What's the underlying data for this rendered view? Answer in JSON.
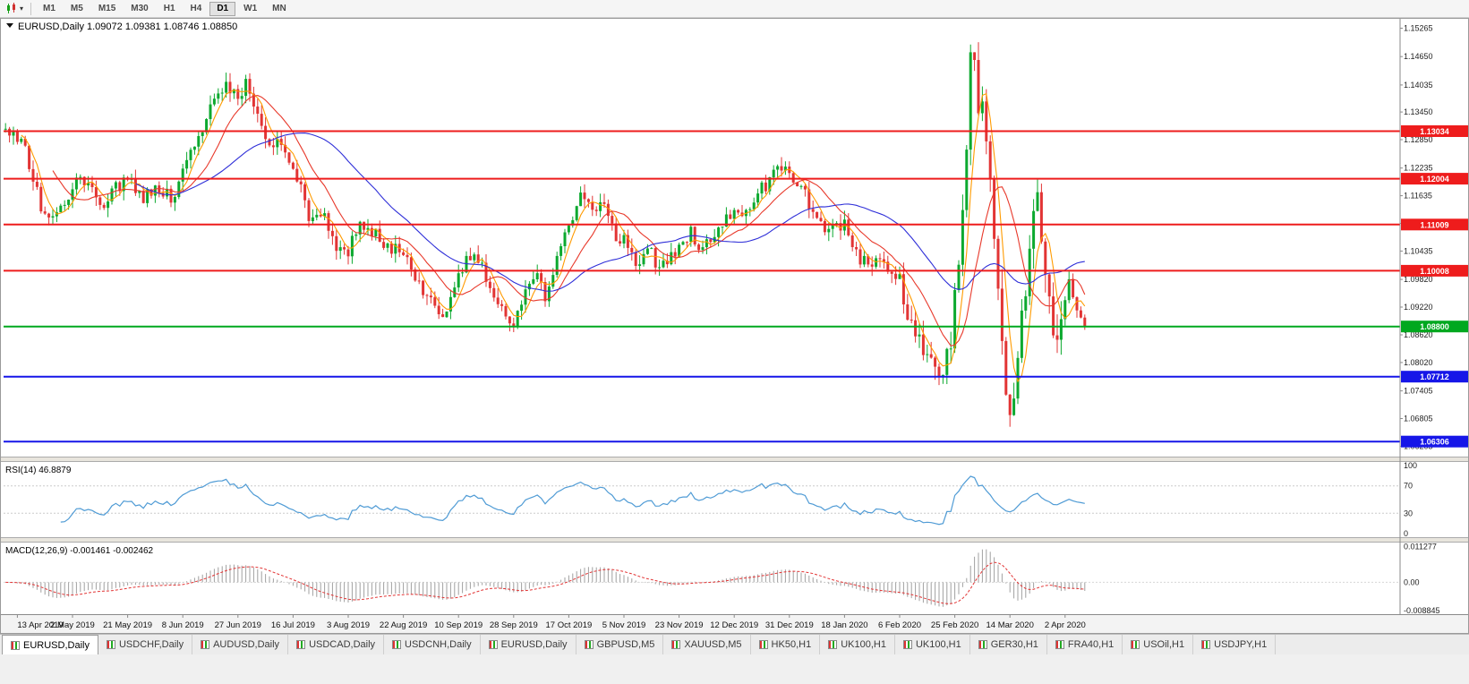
{
  "app": {
    "name": "MetaTrader chart window"
  },
  "toolbar": {
    "timeframes": [
      "M1",
      "M5",
      "M15",
      "M30",
      "H1",
      "H4",
      "D1",
      "W1",
      "MN"
    ],
    "active_timeframe": "D1"
  },
  "chart_header": {
    "symbol": "EURUSD,Daily",
    "open": "1.09072",
    "high": "1.09381",
    "low": "1.08746",
    "close": "1.08850"
  },
  "chart_data": {
    "type": "candlestick",
    "symbol": "EURUSD",
    "timeframe": "Daily",
    "num_candles": 275,
    "price_scale": {
      "min": 1.0598,
      "max": 1.1545,
      "ticks": [
        "1.15265",
        "1.14650",
        "1.14035",
        "1.13450",
        "1.12850",
        "1.12235",
        "1.11635",
        "1.11035",
        "1.10435",
        "1.09820",
        "1.09220",
        "1.08620",
        "1.08020",
        "1.07405",
        "1.06805",
        "1.06205"
      ]
    },
    "price_keypoints": [
      [
        0,
        1.13
      ],
      [
        4,
        1.1285
      ],
      [
        9,
        1.114
      ],
      [
        13,
        1.1115
      ],
      [
        17,
        1.118
      ],
      [
        20,
        1.12
      ],
      [
        24,
        1.1135
      ],
      [
        28,
        1.118
      ],
      [
        31,
        1.12
      ],
      [
        35,
        1.1155
      ],
      [
        39,
        1.1185
      ],
      [
        42,
        1.1155
      ],
      [
        45,
        1.122
      ],
      [
        48,
        1.128
      ],
      [
        52,
        1.135
      ],
      [
        56,
        1.14
      ],
      [
        59,
        1.1385
      ],
      [
        61,
        1.1405
      ],
      [
        64,
        1.134
      ],
      [
        67,
        1.128
      ],
      [
        70,
        1.127
      ],
      [
        73,
        1.1225
      ],
      [
        77,
        1.112
      ],
      [
        80,
        1.1135
      ],
      [
        84,
        1.106
      ],
      [
        87,
        1.104
      ],
      [
        90,
        1.111
      ],
      [
        94,
        1.108
      ],
      [
        97,
        1.106
      ],
      [
        101,
        1.1035
      ],
      [
        104,
        1.098
      ],
      [
        108,
        1.0935
      ],
      [
        112,
        1.0905
      ],
      [
        115,
        1.099
      ],
      [
        118,
        1.104
      ],
      [
        122,
        1.099
      ],
      [
        126,
        1.092
      ],
      [
        129,
        1.0885
      ],
      [
        132,
        1.096
      ],
      [
        135,
        1.0995
      ],
      [
        137,
        1.0945
      ],
      [
        140,
        1.103
      ],
      [
        143,
        1.111
      ],
      [
        146,
        1.116
      ],
      [
        149,
        1.112
      ],
      [
        152,
        1.114
      ],
      [
        155,
        1.108
      ],
      [
        157,
        1.107
      ],
      [
        160,
        1.101
      ],
      [
        163,
        1.105
      ],
      [
        166,
        1.1
      ],
      [
        169,
        1.1025
      ],
      [
        171,
        1.106
      ],
      [
        174,
        1.108
      ],
      [
        177,
        1.104
      ],
      [
        180,
        1.1085
      ],
      [
        183,
        1.111
      ],
      [
        185,
        1.113
      ],
      [
        188,
        1.112
      ],
      [
        191,
        1.117
      ],
      [
        194,
        1.12
      ],
      [
        197,
        1.123
      ],
      [
        199,
        1.1215
      ],
      [
        202,
        1.119
      ],
      [
        205,
        1.113
      ],
      [
        208,
        1.109
      ],
      [
        211,
        1.111
      ],
      [
        213,
        1.1095
      ],
      [
        216,
        1.1035
      ],
      [
        219,
        1.101
      ],
      [
        222,
        1.104
      ],
      [
        225,
        1.0995
      ],
      [
        227,
        1.0975
      ],
      [
        230,
        1.089
      ],
      [
        233,
        1.083
      ],
      [
        236,
        1.079
      ],
      [
        238,
        1.08
      ],
      [
        240,
        1.0855
      ],
      [
        242,
        1.099
      ],
      [
        244,
        1.125
      ],
      [
        245,
        1.146
      ],
      [
        246,
        1.143
      ],
      [
        248,
        1.133
      ],
      [
        250,
        1.118
      ],
      [
        252,
        1.098
      ],
      [
        254,
        1.073
      ],
      [
        255,
        1.066
      ],
      [
        257,
        1.078
      ],
      [
        259,
        1.098
      ],
      [
        261,
        1.113
      ],
      [
        262,
        1.115
      ],
      [
        264,
        1.099
      ],
      [
        266,
        1.084
      ],
      [
        268,
        1.09
      ],
      [
        270,
        1.099
      ],
      [
        272,
        1.093
      ],
      [
        274,
        1.0885
      ]
    ],
    "up_color": "#0ca92f",
    "down_color": "#e23434",
    "moving_averages": [
      {
        "period": 5,
        "color": "#ff9b00"
      },
      {
        "period": 13,
        "color": "#e8392b"
      },
      {
        "period": 34,
        "color": "#2f2fd8"
      }
    ],
    "hlines": [
      {
        "value": 1.13034,
        "label": "1.13034",
        "color": "#ee1c1c",
        "width": 2
      },
      {
        "value": 1.12004,
        "label": "1.12004",
        "color": "#ee1c1c",
        "width": 2
      },
      {
        "value": 1.11009,
        "label": "1.11009",
        "color": "#ee1c1c",
        "width": 2
      },
      {
        "value": 1.10008,
        "label": "1.10008",
        "color": "#ee1c1c",
        "width": 2
      },
      {
        "value": 1.088,
        "label": "1.08800",
        "color": "#00a81f",
        "width": 2
      },
      {
        "value": 1.07712,
        "label": "1.07712",
        "color": "#1616e8",
        "width": 2
      },
      {
        "value": 1.06306,
        "label": "1.06306",
        "color": "#1616e8",
        "width": 2
      }
    ],
    "x_labels": [
      "13 Apr 2019",
      "2 May 2019",
      "21 May 2019",
      "8 Jun 2019",
      "27 Jun 2019",
      "16 Jul 2019",
      "3 Aug 2019",
      "22 Aug 2019",
      "10 Sep 2019",
      "28 Sep 2019",
      "17 Oct 2019",
      "5 Nov 2019",
      "23 Nov 2019",
      "12 Dec 2019",
      "31 Dec 2019",
      "18 Jan 2020",
      "6 Feb 2020",
      "25 Feb 2020",
      "14 Mar 2020",
      "2 Apr 2020"
    ],
    "indicators": {
      "rsi": {
        "name": "RSI(14)",
        "value": "46.8879",
        "period": 14,
        "levels": [
          "100",
          "70",
          "30",
          "0"
        ],
        "line_color": "#4f9bd5"
      },
      "macd": {
        "name": "MACD(12,26,9)",
        "values": "-0.001461 -0.002462",
        "fast": 12,
        "slow": 26,
        "signal": 9,
        "axis_labels": [
          "0.011277",
          "0.00",
          "-0.008845"
        ],
        "bar_color": "#a0a0a0",
        "signal_color": "#e23434"
      }
    }
  },
  "tabs": [
    {
      "label": "EURUSD,Daily",
      "active": true
    },
    {
      "label": "USDCHF,Daily"
    },
    {
      "label": "AUDUSD,Daily"
    },
    {
      "label": "USDCAD,Daily"
    },
    {
      "label": "USDCNH,Daily"
    },
    {
      "label": "EURUSD,Daily"
    },
    {
      "label": "GBPUSD,M5"
    },
    {
      "label": "XAUUSD,M5"
    },
    {
      "label": "HK50,H1"
    },
    {
      "label": "UK100,H1"
    },
    {
      "label": "UK100,H1"
    },
    {
      "label": "GER30,H1"
    },
    {
      "label": "FRA40,H1"
    },
    {
      "label": "USOil,H1"
    },
    {
      "label": "USDJPY,H1"
    }
  ]
}
